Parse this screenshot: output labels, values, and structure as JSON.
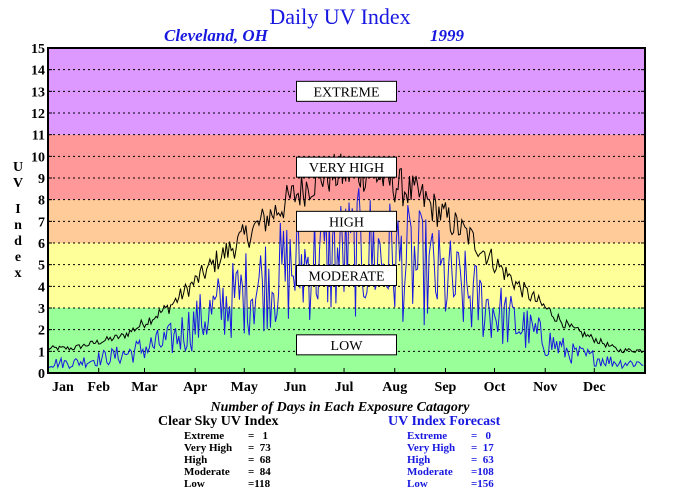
{
  "chart_data": {
    "type": "line",
    "title": "Daily UV Index",
    "subtitle_location": "Cleveland, OH",
    "subtitle_year": "1999",
    "ylabel": "UV Index",
    "ylim": [
      0,
      15
    ],
    "y_ticks": [
      "0",
      "1",
      "2",
      "3",
      "4",
      "5",
      "6",
      "7",
      "8",
      "9",
      "10",
      "11",
      "12",
      "13",
      "14",
      "15"
    ],
    "x_ticks": [
      "Jan",
      "Feb",
      "Mar",
      "Apr",
      "May",
      "Jun",
      "Jul",
      "Aug",
      "Sep",
      "Oct",
      "Nov",
      "Dec"
    ],
    "grid": "horizontal dotted",
    "bands": [
      {
        "label": "LOW",
        "from": 0,
        "to": 3,
        "color": "#99ff99"
      },
      {
        "label": "MODERATE",
        "from": 3,
        "to": 6,
        "color": "#ffff99"
      },
      {
        "label": "HIGH",
        "from": 6,
        "to": 8,
        "color": "#ffcc99"
      },
      {
        "label": "VERY HIGH",
        "from": 8,
        "to": 11,
        "color": "#ff9999"
      },
      {
        "label": "EXTREME",
        "from": 11,
        "to": 15,
        "color": "#dd99ff"
      }
    ],
    "band_label_positions": [
      {
        "label": "EXTREME",
        "value": 13
      },
      {
        "label": "VERY HIGH",
        "value": 9.5
      },
      {
        "label": "HIGH",
        "value": 7
      },
      {
        "label": "MODERATE",
        "value": 4.5
      },
      {
        "label": "LOW",
        "value": 1.3
      }
    ],
    "series": [
      {
        "name": "Clear Sky UV Index",
        "color": "#000000",
        "monthly_approx": [
          1.2,
          1.8,
          3.2,
          5.6,
          7.6,
          9.6,
          9.8,
          8.6,
          6.6,
          4.2,
          2.2,
          1.1
        ]
      },
      {
        "name": "UV Index Forecast",
        "color": "#1818e0",
        "monthly_approx": [
          0.6,
          1.1,
          1.9,
          3.9,
          5.6,
          6.8,
          7.2,
          6.3,
          4.6,
          2.8,
          1.2,
          0.6
        ]
      }
    ]
  },
  "summary": {
    "heading": "Number of Days in Each Exposure Catagory",
    "clear_sky": {
      "title": "Clear Sky UV Index",
      "rows": [
        {
          "category": "Extreme",
          "value": "=   1"
        },
        {
          "category": "Very High",
          "value": "=  73"
        },
        {
          "category": "High",
          "value": "=  68"
        },
        {
          "category": "Moderate",
          "value": "=  84"
        },
        {
          "category": "Low",
          "value": "=118"
        }
      ]
    },
    "forecast": {
      "title": "UV Index Forecast",
      "rows": [
        {
          "category": "Extreme",
          "value": "=   0"
        },
        {
          "category": "Very High",
          "value": "=  17"
        },
        {
          "category": "High",
          "value": "=  63"
        },
        {
          "category": "Moderate",
          "value": "=108"
        },
        {
          "category": "Low",
          "value": "=156"
        }
      ]
    }
  }
}
